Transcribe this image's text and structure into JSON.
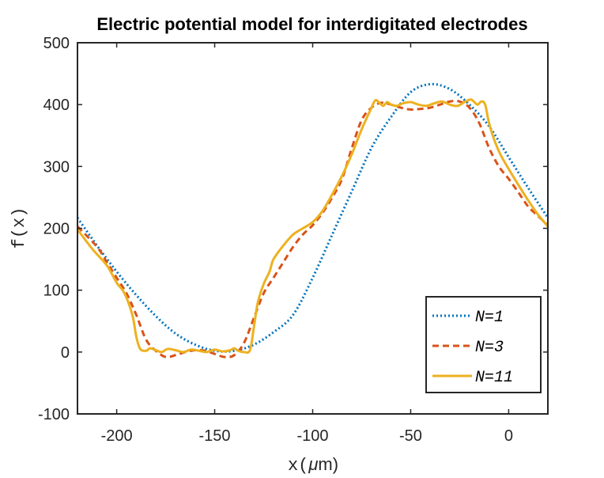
{
  "chart_data": {
    "type": "line",
    "title": "Electric potential model for interdigitated electrodes",
    "xlabel": {
      "var": "x",
      "open": "(",
      "mu": "μ",
      "unit": "m)"
    },
    "ylabel": "f(x)",
    "xlim": [
      -220,
      20
    ],
    "ylim": [
      -100,
      500
    ],
    "xticks": [
      -200,
      -150,
      -100,
      -50,
      0
    ],
    "yticks": [
      -100,
      0,
      100,
      200,
      300,
      400,
      500
    ],
    "xtick_labels": [
      "-200",
      "-150",
      "-100",
      "-50",
      "0"
    ],
    "ytick_labels": [
      "-100",
      "0",
      "100",
      "200",
      "300",
      "400",
      "500"
    ],
    "grid": false,
    "legend_position": "bottom-right",
    "series": [
      {
        "name": "N=1",
        "color": "#0072BD",
        "style": "dotted",
        "x": [
          -220,
          -210,
          -200,
          -190,
          -180,
          -170,
          -160,
          -150,
          -140,
          -130,
          -120,
          -110,
          -100,
          -90,
          -80,
          -70,
          -60,
          -50,
          -40,
          -30,
          -20,
          -10,
          0,
          10,
          20
        ],
        "y": [
          217,
          172,
          130,
          92,
          58,
          30,
          12,
          2,
          2,
          12,
          32,
          60,
          120,
          190,
          260,
          330,
          380,
          420,
          433,
          425,
          400,
          365,
          315,
          265,
          217
        ]
      },
      {
        "name": "N=3",
        "color": "#D95319",
        "style": "dashed",
        "x": [
          -220,
          -210,
          -205,
          -200,
          -195,
          -190,
          -185,
          -180,
          -175,
          -170,
          -165,
          -160,
          -155,
          -150,
          -145,
          -140,
          -135,
          -130,
          -125,
          -120,
          -115,
          -110,
          -105,
          -100,
          -95,
          -90,
          -85,
          -80,
          -75,
          -70,
          -65,
          -60,
          -55,
          -50,
          -45,
          -40,
          -35,
          -30,
          -25,
          -20,
          -15,
          -10,
          -5,
          0,
          5,
          10,
          15,
          20
        ],
        "y": [
          203,
          170,
          145,
          120,
          95,
          60,
          20,
          2,
          -8,
          -5,
          0,
          3,
          2,
          -3,
          -8,
          -5,
          15,
          55,
          95,
          120,
          145,
          170,
          190,
          205,
          225,
          250,
          280,
          330,
          375,
          395,
          403,
          400,
          395,
          392,
          393,
          395,
          400,
          405,
          405,
          395,
          370,
          330,
          300,
          280,
          258,
          235,
          220,
          205
        ]
      },
      {
        "name": "N=11",
        "color": "#EDB120",
        "style": "solid",
        "x": [
          -220,
          -212,
          -205,
          -200,
          -196,
          -192,
          -190,
          -188,
          -185,
          -183,
          -180,
          -177,
          -174,
          -170,
          -166,
          -162,
          -158,
          -154,
          -150,
          -146,
          -142,
          -140,
          -138,
          -135,
          -132,
          -130,
          -128,
          -125,
          -122,
          -120,
          -115,
          -110,
          -105,
          -100,
          -95,
          -90,
          -85,
          -80,
          -75,
          -70,
          -68,
          -66,
          -64,
          -62,
          -60,
          -57,
          -54,
          -50,
          -46,
          -42,
          -38,
          -34,
          -30,
          -26,
          -22,
          -19,
          -16,
          -14,
          -12,
          -10,
          -7,
          -4,
          0,
          5,
          10,
          15,
          20
        ],
        "y": [
          198,
          165,
          140,
          112,
          95,
          60,
          25,
          5,
          2,
          6,
          3,
          0,
          5,
          3,
          0,
          4,
          2,
          0,
          4,
          1,
          3,
          6,
          2,
          0,
          3,
          40,
          80,
          110,
          130,
          150,
          172,
          190,
          200,
          210,
          228,
          255,
          285,
          320,
          360,
          395,
          407,
          403,
          398,
          404,
          400,
          398,
          402,
          404,
          400,
          398,
          402,
          405,
          400,
          398,
          405,
          408,
          400,
          405,
          400,
          370,
          340,
          318,
          296,
          270,
          245,
          222,
          203
        ]
      }
    ]
  }
}
